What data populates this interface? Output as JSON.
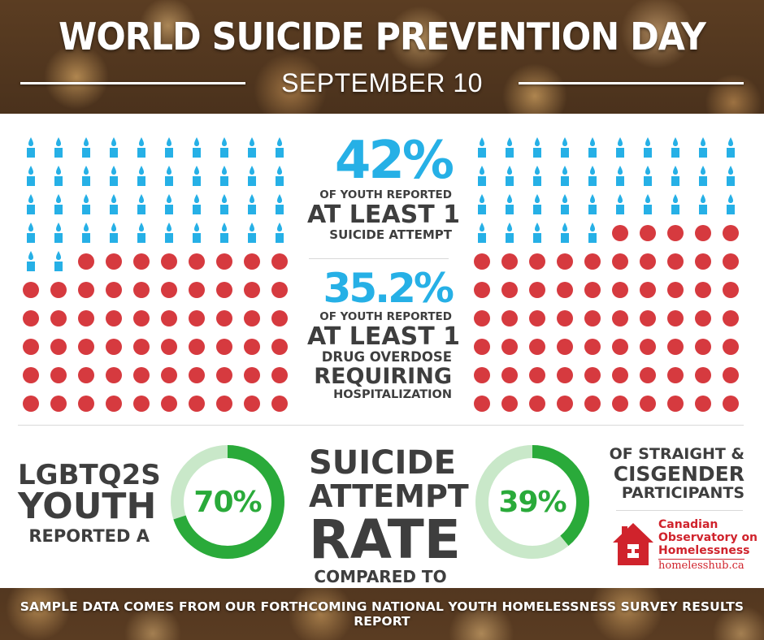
{
  "header": {
    "title": "WORLD SUICIDE PREVENTION DAY",
    "date": "SEPTEMBER 10"
  },
  "stat_attempt": {
    "value": "42%",
    "line1": "OF YOUTH REPORTED",
    "line2": "AT LEAST 1",
    "line3": "SUICIDE ATTEMPT"
  },
  "stat_overdose": {
    "value": "35.2%",
    "line1": "OF YOUTH REPORTED",
    "line2": "AT LEAST 1",
    "line3": "DRUG OVERDOSE",
    "line4": "REQUIRING",
    "line5": "HOSPITALIZATION"
  },
  "chart_data": [
    {
      "type": "waffle",
      "description_value": 42,
      "total": 100,
      "highlighted_count": 42,
      "highlight_icon": "candle-icon",
      "other_icon": "red-dot"
    },
    {
      "type": "waffle",
      "description_value": 35.2,
      "total": 100,
      "highlighted_count": 35,
      "highlight_icon": "candle-icon",
      "other_icon": "red-dot"
    },
    {
      "type": "donut",
      "label": "70%",
      "value": 70
    },
    {
      "type": "donut",
      "label": "39%",
      "value": 39
    }
  ],
  "comparison": {
    "left_line1": "LGBTQ2S",
    "left_line2": "YOUTH",
    "left_line3": "REPORTED A",
    "center_line1": "SUICIDE",
    "center_line2": "ATTEMPT",
    "center_line3": "RATE",
    "center_line4": "COMPARED TO",
    "right_line1": "OF STRAIGHT &",
    "right_line2": "CISGENDER",
    "right_line3": "PARTICIPANTS"
  },
  "logo": {
    "line1": "Canadian",
    "line2": "Observatory on",
    "line3": "Homelessness",
    "url": "homelesshub.ca"
  },
  "footer": {
    "note": "SAMPLE DATA COMES FROM OUR FORTHCOMING NATIONAL YOUTH HOMELESSNESS SURVEY RESULTS REPORT"
  },
  "colors": {
    "candle": "#26b0e6",
    "dot": "#d63a3f",
    "ring": "#2aaa3a",
    "ring_track": "#c9e8c9",
    "text_dark": "#3e3e3e",
    "brand_red": "#d0232c"
  }
}
